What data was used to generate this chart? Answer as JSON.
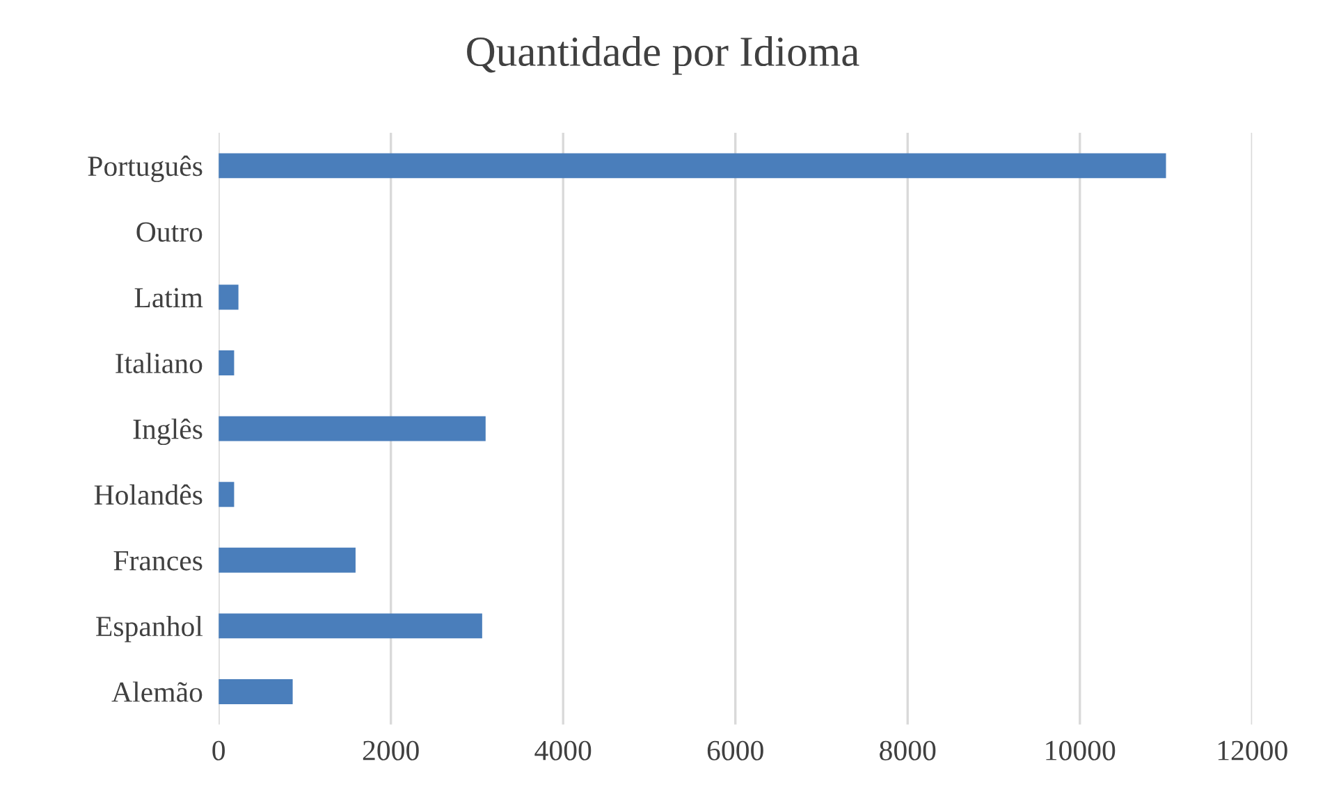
{
  "chart_data": {
    "type": "bar",
    "orientation": "horizontal",
    "title": "Quantidade por Idioma",
    "categories": [
      "Português",
      "Outro",
      "Latim",
      "Italiano",
      "Inglês",
      "Holandês",
      "Frances",
      "Espanhol",
      "Alemão"
    ],
    "values": [
      11000,
      0,
      230,
      180,
      3100,
      180,
      1590,
      3060,
      860
    ],
    "color": "#4a7ebb",
    "xlim": [
      0,
      12000
    ],
    "xticks": [
      0,
      2000,
      4000,
      6000,
      8000,
      10000,
      12000
    ],
    "grid": "x"
  }
}
